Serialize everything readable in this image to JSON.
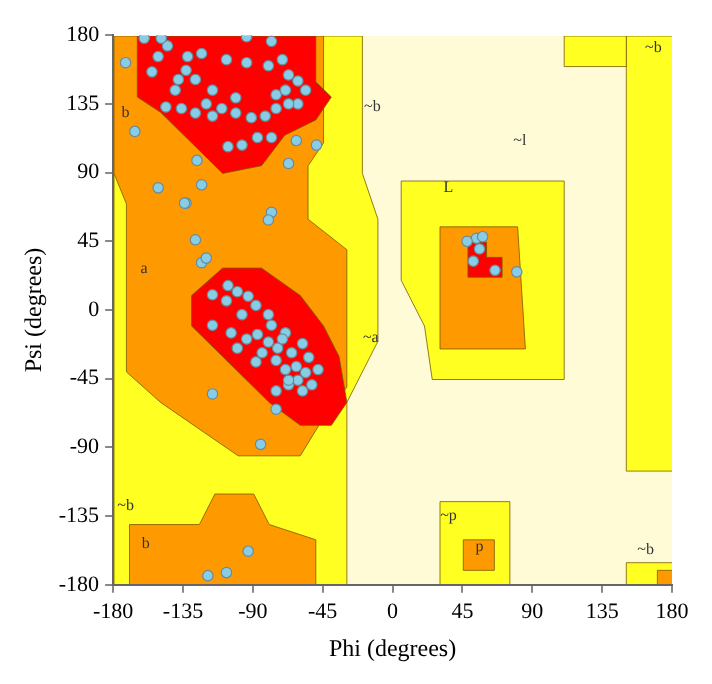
{
  "chart_data": {
    "type": "scatter",
    "xlabel": "Phi (degrees)",
    "ylabel": "Psi (degrees)",
    "xlim": [
      -180,
      180
    ],
    "ylim": [
      -180,
      180
    ],
    "xticks": [
      -180,
      -135,
      -90,
      -45,
      0,
      45,
      90,
      135,
      180
    ],
    "yticks": [
      -180,
      -135,
      -90,
      -45,
      0,
      45,
      90,
      135,
      180
    ],
    "grid": false,
    "legend": false,
    "marker": "circle",
    "series": [
      {
        "color": "#87cde6",
        "x": [
          -160,
          -145,
          -151,
          -132,
          -123,
          -133,
          -138,
          -127,
          -140,
          -146,
          -136,
          -127,
          -120,
          -116,
          -110,
          -101,
          -91,
          -82,
          -75,
          -107,
          -94,
          -80,
          -71,
          -67,
          -61,
          -69,
          -61,
          -67,
          -56,
          -75,
          -106,
          -97,
          -87,
          -78,
          -62,
          -126,
          -49,
          -67,
          -172,
          -166,
          -151,
          -123,
          -133,
          -78,
          -149,
          -94,
          -78,
          -101,
          -116,
          -155,
          -134,
          -80,
          -127,
          -123,
          -120,
          -106,
          -116,
          -107,
          -100,
          -93,
          -88,
          -80,
          -97,
          -116,
          -104,
          -94,
          -87,
          -100,
          -80,
          -74,
          -69,
          -65,
          -88,
          -75,
          -69,
          -62,
          -61,
          -56,
          -52,
          -67,
          -48,
          -54,
          -58,
          -78,
          -84,
          -71,
          -75,
          -58,
          -116,
          -75,
          -67,
          -85,
          -93,
          -119,
          -107,
          54,
          58,
          48,
          56,
          52,
          66,
          80
        ],
        "values": [
          178,
          173,
          166,
          166,
          168,
          157,
          151,
          151,
          144,
          133,
          132,
          129,
          135,
          127,
          132,
          129,
          126,
          127,
          132,
          164,
          162,
          160,
          164,
          154,
          150,
          144,
          135,
          135,
          144,
          141,
          107,
          108,
          113,
          113,
          111,
          98,
          108,
          96,
          162,
          117,
          80,
          82,
          70,
          64,
          178,
          179,
          176,
          139,
          144,
          156,
          70,
          59,
          46,
          31,
          34,
          16,
          10,
          6,
          12,
          9,
          3,
          -3,
          -3,
          -10,
          -15,
          -19,
          -16,
          -25,
          -21,
          -25,
          -15,
          -28,
          -34,
          -33,
          -39,
          -37,
          -46,
          -41,
          -49,
          -49,
          -39,
          -31,
          -22,
          -10,
          -28,
          -19,
          -53,
          -53,
          -55,
          -65,
          -46,
          -88,
          -158,
          -174,
          -172,
          47,
          48,
          45,
          40,
          32,
          26,
          25
        ]
      }
    ],
    "annotations": [
      "b",
      "a",
      "~b",
      "~a",
      "L",
      "~l",
      "~p",
      "p",
      "~b",
      "~b",
      "b",
      "~b"
    ]
  }
}
